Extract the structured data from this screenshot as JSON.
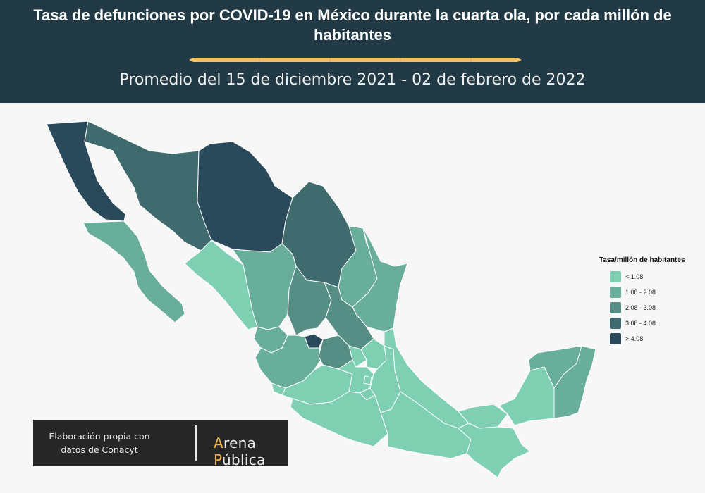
{
  "header": {
    "title": "Tasa de defunciones por COVID-19 en México durante la cuarta ola, por cada millón de habitantes",
    "subtitle": "Promedio del 15 de diciembre 2021 - 02 de febrero de 2022",
    "background": "#213a45",
    "divider_color": "#f2c15d"
  },
  "legend": {
    "title": "Tasa/millón de habitantes",
    "items": [
      {
        "label": "< 1.08",
        "color": "#7fcfb3"
      },
      {
        "label": "1.08 - 2.08",
        "color": "#69ad9b"
      },
      {
        "label": "2.08 - 3.08",
        "color": "#568e86"
      },
      {
        "label": "3.08 - 4.08",
        "color": "#3f6b6e"
      },
      {
        "label": "> 4.08",
        "color": "#2a4a5c"
      }
    ]
  },
  "credit": {
    "text": "Elaboración propia con datos de Conacyt",
    "brand_a": "A",
    "brand_rest1": "rena ",
    "brand_p": "P",
    "brand_rest2": "ública",
    "accent": "#f2b543"
  }
}
